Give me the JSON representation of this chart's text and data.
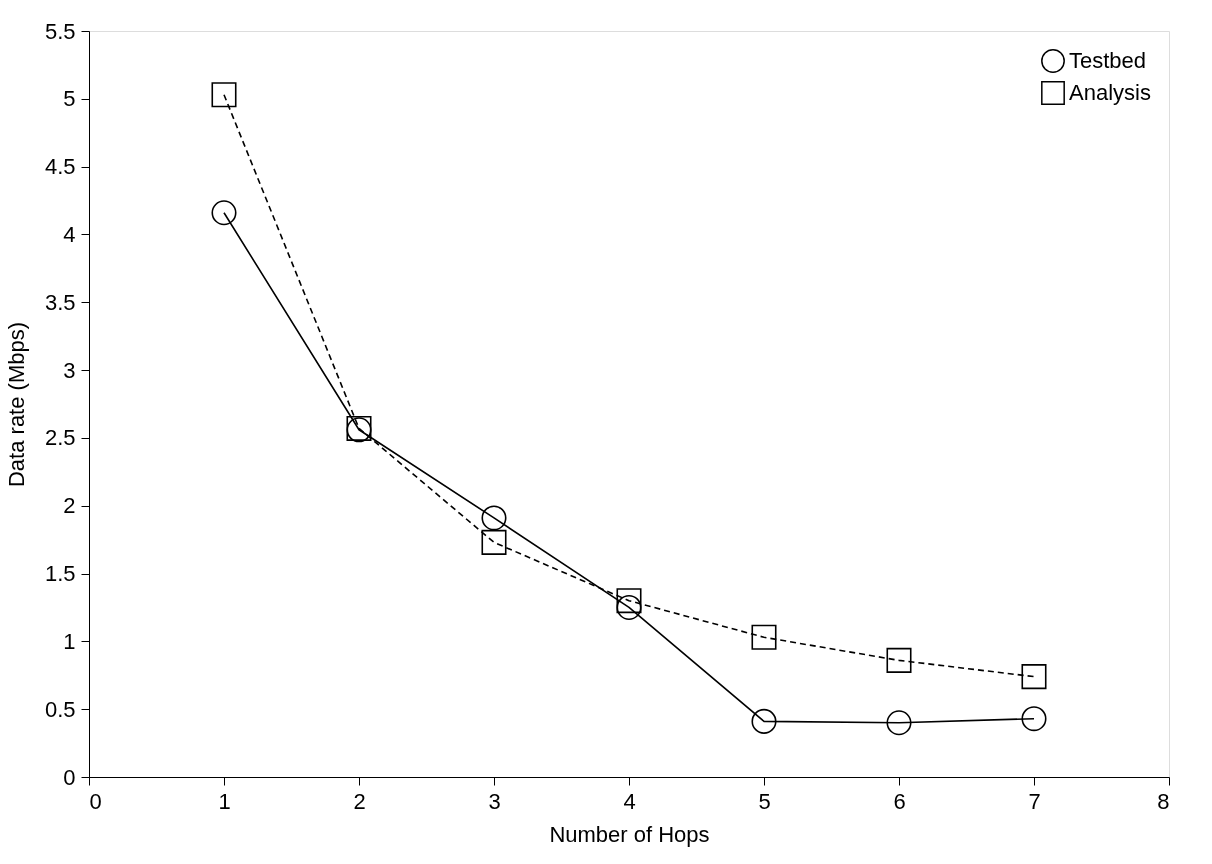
{
  "chart_data": {
    "type": "line",
    "xlabel": "Number of Hops",
    "ylabel": "Data rate (Mbps)",
    "x": [
      1,
      2,
      3,
      4,
      5,
      6,
      7
    ],
    "series": [
      {
        "name": "Testbed",
        "color": "#000000",
        "marker": "circle",
        "line_style": "solid",
        "values": [
          4.16,
          2.56,
          1.91,
          1.25,
          0.41,
          0.4,
          0.43
        ]
      },
      {
        "name": "Analysis",
        "color": "#000000",
        "marker": "square",
        "line_style": "dashed",
        "values": [
          5.03,
          2.57,
          1.73,
          1.3,
          1.03,
          0.86,
          0.74
        ]
      }
    ],
    "xlim": [
      0,
      8
    ],
    "xticks": [
      0,
      1,
      2,
      3,
      4,
      5,
      6,
      7,
      8
    ],
    "ylim": [
      0,
      5.5
    ],
    "yticks": [
      0,
      0.5,
      1,
      1.5,
      2,
      2.5,
      3,
      3.5,
      4,
      4.5,
      5,
      5.5
    ],
    "grid": false,
    "legend": "top right"
  }
}
